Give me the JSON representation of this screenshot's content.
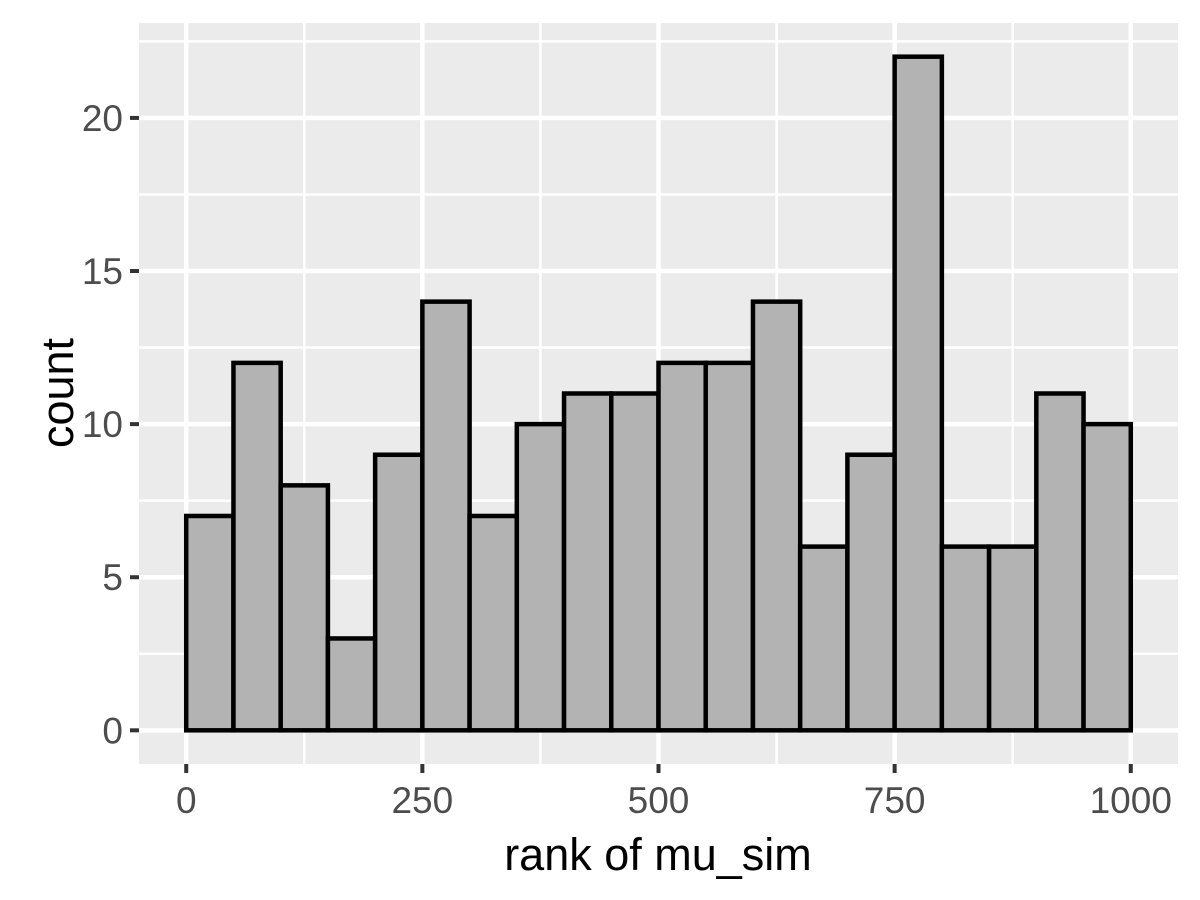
{
  "chart_data": {
    "type": "bar",
    "subtype": "histogram",
    "title": "",
    "xlabel": "rank of mu_sim",
    "ylabel": "count",
    "bin_start": 0,
    "bin_width": 50,
    "bin_edges": [
      0,
      50,
      100,
      150,
      200,
      250,
      300,
      350,
      400,
      450,
      500,
      550,
      600,
      650,
      700,
      750,
      800,
      850,
      900,
      950,
      1000
    ],
    "values": [
      7,
      12,
      8,
      3,
      9,
      14,
      7,
      10,
      11,
      11,
      12,
      12,
      14,
      6,
      9,
      22,
      6,
      6,
      11,
      10
    ],
    "x_tick_labels": [
      "0",
      "250",
      "500",
      "750",
      "1000"
    ],
    "x_tick_values": [
      0,
      250,
      500,
      750,
      1000
    ],
    "y_tick_labels": [
      "0",
      "5",
      "10",
      "15",
      "20"
    ],
    "y_tick_values": [
      0,
      5,
      10,
      15,
      20
    ],
    "x_minor_gridlines": [
      125,
      375,
      625,
      875
    ],
    "y_minor_gridlines": [
      2.5,
      7.5,
      12.5,
      17.5,
      22.5
    ],
    "xlim": [
      -50,
      1050
    ],
    "ylim": [
      -1.1,
      23.1
    ],
    "grid": "major-and-minor",
    "legend_position": "none",
    "colors": {
      "page_background": "#FFFFFF",
      "panel_background": "#EBEBEB",
      "gridline": "#FFFFFF",
      "bar_fill": "#B3B3B3",
      "bar_stroke": "#000000",
      "tick_label": "#4D4D4D",
      "tick_mark": "#333333",
      "axis_title": "#000000"
    }
  }
}
